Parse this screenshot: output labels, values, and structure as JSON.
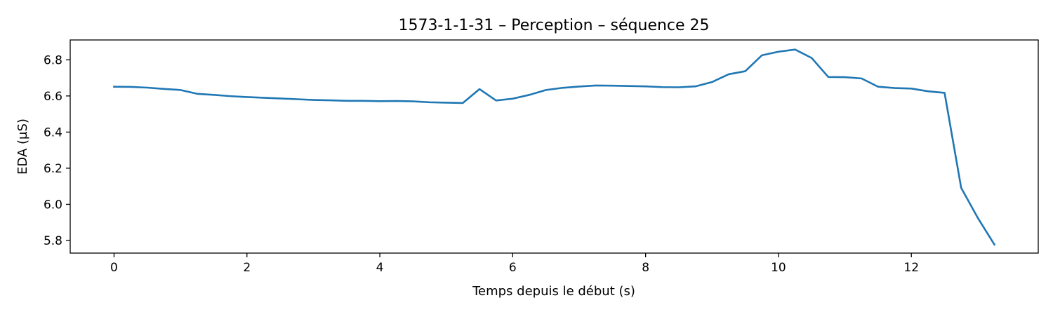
{
  "chart_data": {
    "type": "line",
    "title": "1573-1-1-31 – Perception – séquence 25",
    "xlabel": "Temps depuis le début (s)",
    "ylabel": "EDA (µS)",
    "xlim": [
      -0.66,
      13.91
    ],
    "ylim": [
      5.73,
      6.91
    ],
    "xticks": [
      0,
      2,
      4,
      6,
      8,
      10,
      12
    ],
    "yticks": [
      5.8,
      6.0,
      6.2,
      6.4,
      6.6,
      6.8
    ],
    "xtick_labels": [
      "0",
      "2",
      "4",
      "6",
      "8",
      "10",
      "12"
    ],
    "ytick_labels": [
      "5.8",
      "6.0",
      "6.2",
      "6.4",
      "6.6",
      "6.8"
    ],
    "grid": false,
    "series": [
      {
        "color": "#1f77b4",
        "x": [
          0,
          0.25,
          0.5,
          0.75,
          1.0,
          1.25,
          1.5,
          1.75,
          2.0,
          2.25,
          2.5,
          2.75,
          3.0,
          3.25,
          3.5,
          3.75,
          4.0,
          4.25,
          4.5,
          4.75,
          5.0,
          5.25,
          5.5,
          5.75,
          6.0,
          6.25,
          6.5,
          6.75,
          7.0,
          7.25,
          7.5,
          7.75,
          8.0,
          8.25,
          8.5,
          8.75,
          9.0,
          9.25,
          9.5,
          9.75,
          10.0,
          10.25,
          10.5,
          10.75,
          11.0,
          11.25,
          11.5,
          11.75,
          12.0,
          12.25,
          12.5,
          12.75,
          13.0,
          13.25
        ],
        "y": [
          6.651,
          6.65,
          6.646,
          6.639,
          6.633,
          6.612,
          6.606,
          6.599,
          6.594,
          6.59,
          6.586,
          6.582,
          6.578,
          6.576,
          6.573,
          6.573,
          6.571,
          6.572,
          6.57,
          6.565,
          6.563,
          6.561,
          6.638,
          6.575,
          6.585,
          6.606,
          6.633,
          6.645,
          6.652,
          6.658,
          6.657,
          6.655,
          6.653,
          6.649,
          6.648,
          6.653,
          6.677,
          6.72,
          6.737,
          6.825,
          6.845,
          6.857,
          6.81,
          6.705,
          6.704,
          6.697,
          6.651,
          6.644,
          6.641,
          6.626,
          6.617,
          6.091,
          5.925,
          5.777
        ]
      }
    ]
  }
}
